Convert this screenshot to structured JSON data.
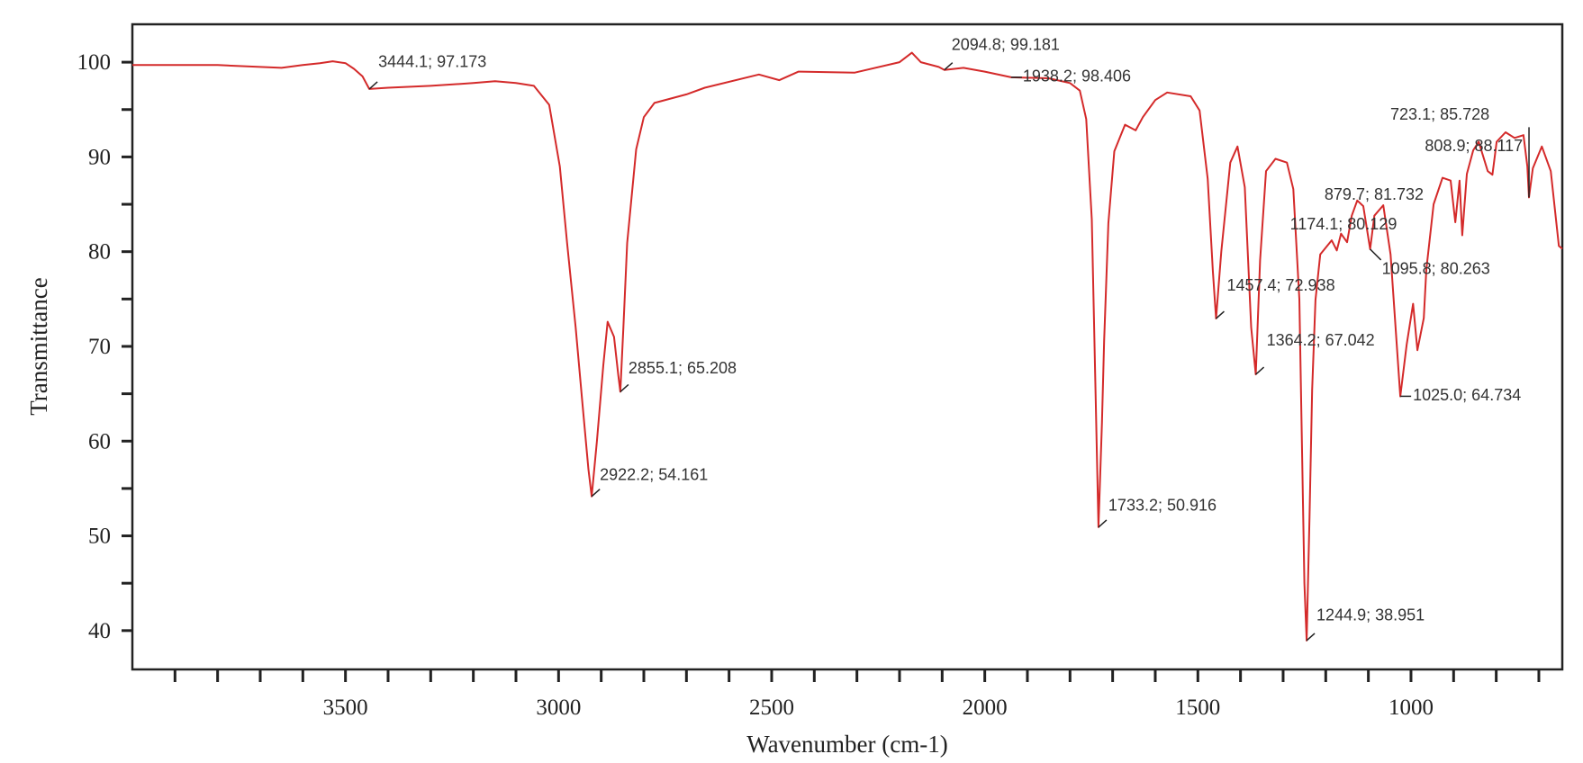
{
  "chart_data": {
    "type": "line",
    "title": "",
    "xlabel": "Wavenumber (cm-1)",
    "ylabel": "Transmittance",
    "xlim": [
      4000,
      645
    ],
    "ylim": [
      35.9,
      104
    ],
    "x_reversed": true,
    "grid": false,
    "line_color": "#d42a2a",
    "xticks": [
      3500,
      3000,
      2500,
      2000,
      1500,
      1000
    ],
    "xtick_labels": [
      "3500",
      "3000",
      "2500",
      "2000",
      "1500",
      "1000"
    ],
    "yticks": [
      100,
      90,
      80,
      70,
      60,
      50,
      40
    ],
    "ytick_labels": [
      "100",
      "90",
      "80",
      "70",
      "60",
      "50",
      "40"
    ],
    "series": [
      {
        "points": [
          [
            4000,
            99.7
          ],
          [
            3900,
            99.7
          ],
          [
            3800,
            99.7
          ],
          [
            3700,
            99.5
          ],
          [
            3650,
            99.4
          ],
          [
            3600,
            99.7
          ],
          [
            3560,
            99.9
          ],
          [
            3530,
            100.1
          ],
          [
            3500,
            99.9
          ],
          [
            3480,
            99.3
          ],
          [
            3460,
            98.5
          ],
          [
            3444.1,
            97.17
          ],
          [
            3400,
            97.3
          ],
          [
            3300,
            97.5
          ],
          [
            3200,
            97.8
          ],
          [
            3149,
            98.0
          ],
          [
            3100,
            97.8
          ],
          [
            3058,
            97.5
          ],
          [
            3022,
            95.5
          ],
          [
            2997,
            89
          ],
          [
            2980,
            80.9
          ],
          [
            2960,
            72
          ],
          [
            2944,
            64
          ],
          [
            2930,
            57
          ],
          [
            2922.2,
            54.16
          ],
          [
            2910,
            60
          ],
          [
            2895,
            68
          ],
          [
            2885,
            72.6
          ],
          [
            2870,
            71
          ],
          [
            2860,
            67
          ],
          [
            2855.1,
            65.21
          ],
          [
            2848,
            72
          ],
          [
            2839,
            80.9
          ],
          [
            2818,
            90.8
          ],
          [
            2800,
            94.2
          ],
          [
            2775,
            95.7
          ],
          [
            2700,
            96.6
          ],
          [
            2657,
            97.3
          ],
          [
            2530,
            98.7
          ],
          [
            2482,
            98.1
          ],
          [
            2437,
            99
          ],
          [
            2305,
            98.9
          ],
          [
            2200,
            100
          ],
          [
            2171,
            101
          ],
          [
            2150,
            100
          ],
          [
            2108,
            99.5
          ],
          [
            2094.8,
            99.18
          ],
          [
            2050,
            99.4
          ],
          [
            2000,
            99
          ],
          [
            1938.2,
            98.41
          ],
          [
            1850,
            98.3
          ],
          [
            1800,
            97.8
          ],
          [
            1777,
            97
          ],
          [
            1762,
            94
          ],
          [
            1749,
            83.4
          ],
          [
            1740,
            65
          ],
          [
            1733.2,
            50.92
          ],
          [
            1725,
            62
          ],
          [
            1720,
            70.6
          ],
          [
            1710,
            83
          ],
          [
            1696,
            90.6
          ],
          [
            1671,
            93.4
          ],
          [
            1646,
            92.8
          ],
          [
            1629,
            94.2
          ],
          [
            1600,
            96
          ],
          [
            1572,
            96.8
          ],
          [
            1517,
            96.4
          ],
          [
            1496,
            94.9
          ],
          [
            1477,
            87.7
          ],
          [
            1465,
            78
          ],
          [
            1457.4,
            72.94
          ],
          [
            1445,
            80
          ],
          [
            1424,
            89.4
          ],
          [
            1407,
            91.1
          ],
          [
            1390,
            86.8
          ],
          [
            1375,
            72
          ],
          [
            1364.2,
            67.04
          ],
          [
            1354,
            79.1
          ],
          [
            1340,
            88.5
          ],
          [
            1318,
            89.8
          ],
          [
            1291,
            89.4
          ],
          [
            1276,
            86.6
          ],
          [
            1262,
            75
          ],
          [
            1250,
            45
          ],
          [
            1244.9,
            38.95
          ],
          [
            1238,
            52
          ],
          [
            1232,
            65.4
          ],
          [
            1224,
            74.9
          ],
          [
            1213,
            79.7
          ],
          [
            1186,
            81.2
          ],
          [
            1174.1,
            80.13
          ],
          [
            1164,
            81.9
          ],
          [
            1150,
            81
          ],
          [
            1139,
            83.8
          ],
          [
            1126,
            85.4
          ],
          [
            1112,
            84.8
          ],
          [
            1095.8,
            80.26
          ],
          [
            1086,
            83.8
          ],
          [
            1065,
            84.9
          ],
          [
            1048,
            79.7
          ],
          [
            1031,
            68.6
          ],
          [
            1025,
            64.73
          ],
          [
            1010,
            70.2
          ],
          [
            995,
            74.5
          ],
          [
            985,
            69.6
          ],
          [
            970,
            73
          ],
          [
            964,
            78.1
          ],
          [
            947,
            85
          ],
          [
            926,
            87.8
          ],
          [
            907,
            87.5
          ],
          [
            896,
            83.1
          ],
          [
            886,
            87.5
          ],
          [
            879.7,
            81.73
          ],
          [
            869,
            88.2
          ],
          [
            854,
            90.7
          ],
          [
            841,
            91.6
          ],
          [
            820,
            88.5
          ],
          [
            808.9,
            88.12
          ],
          [
            799,
            91.6
          ],
          [
            778,
            92.6
          ],
          [
            757,
            92
          ],
          [
            736,
            92.3
          ],
          [
            727,
            89
          ],
          [
            723.1,
            85.73
          ],
          [
            714,
            88.8
          ],
          [
            693,
            91.1
          ],
          [
            672,
            88.5
          ],
          [
            653,
            80.6
          ],
          [
            645,
            80.3
          ]
        ]
      }
    ],
    "annotations": [
      {
        "x": 3444.1,
        "y": 97.173,
        "text": "3444.1; 97.173"
      },
      {
        "x": 2922.2,
        "y": 54.161,
        "text": "2922.2; 54.161"
      },
      {
        "x": 2855.1,
        "y": 65.208,
        "text": "2855.1; 65.208"
      },
      {
        "x": 2094.8,
        "y": 99.181,
        "text": "2094.8; 99.181"
      },
      {
        "x": 1938.2,
        "y": 98.406,
        "text": "1938.2; 98.406"
      },
      {
        "x": 1733.2,
        "y": 50.916,
        "text": "1733.2; 50.916"
      },
      {
        "x": 1457.4,
        "y": 72.938,
        "text": "1457.4; 72.938"
      },
      {
        "x": 1364.2,
        "y": 67.042,
        "text": "1364.2; 67.042"
      },
      {
        "x": 1244.9,
        "y": 38.951,
        "text": "1244.9; 38.951"
      },
      {
        "x": 1174.1,
        "y": 80.129,
        "text": "1174.1; 80.129"
      },
      {
        "x": 1095.8,
        "y": 80.263,
        "text": "1095.8; 80.263"
      },
      {
        "x": 1025.0,
        "y": 64.734,
        "text": "1025.0; 64.734"
      },
      {
        "x": 879.7,
        "y": 81.732,
        "text": "879.7; 81.732"
      },
      {
        "x": 808.9,
        "y": 88.117,
        "text": "808.9; 88.117"
      },
      {
        "x": 723.1,
        "y": 85.728,
        "text": "723.1; 85.728"
      }
    ]
  }
}
